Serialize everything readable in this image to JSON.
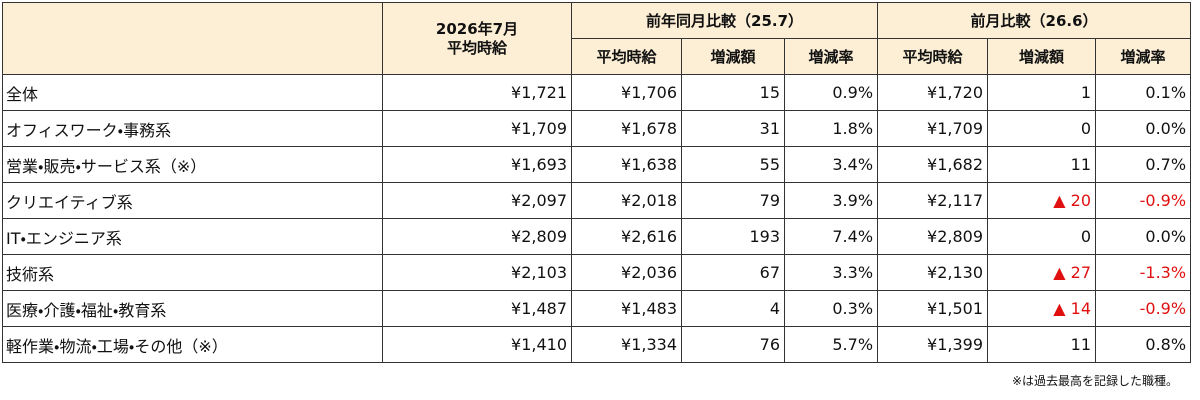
{
  "header": {
    "current": [
      "2026年7月",
      "平均時給"
    ],
    "groups": [
      "前年同月比較（25.7）",
      "前月比較（26.6）"
    ],
    "columns": [
      "平均時給",
      "増減額",
      "増減率",
      "平均時給",
      "増減額",
      "増減率"
    ]
  },
  "table": {
    "rows": [
      [
        "全体",
        "¥1,721",
        "¥1,706",
        "15",
        "0.9%",
        "¥1,720",
        "1",
        "0.1%"
      ],
      [
        "オフィスワーク・事務系",
        "¥1,709",
        "¥1,678",
        "31",
        "1.8%",
        "¥1,709",
        "0",
        "0.0%"
      ],
      [
        "営業・販売・サービス系（※）",
        "¥1,693",
        "¥1,638",
        "55",
        "3.4%",
        "¥1,682",
        "11",
        "0.7%"
      ],
      [
        "クリエイティブ系",
        "¥2,097",
        "¥2,018",
        "79",
        "3.9%",
        "¥2,117",
        "▲ 20",
        "-0.9%"
      ],
      [
        "IT・エンジニア系",
        "¥2,809",
        "¥2,616",
        "193",
        "7.4%",
        "¥2,809",
        "0",
        "0.0%"
      ],
      [
        "技術系",
        "¥2,103",
        "¥2,036",
        "67",
        "3.3%",
        "¥2,130",
        "▲ 27",
        "-1.3%"
      ],
      [
        "医療・介護・福祉・教育系",
        "¥1,487",
        "¥1,483",
        "4",
        "0.3%",
        "¥1,501",
        "▲ 14",
        "-0.9%"
      ],
      [
        "軽作業・物流・工場・その他（※）",
        "¥1,410",
        "¥1,334",
        "76",
        "5.7%",
        "¥1,399",
        "11",
        "0.8%"
      ]
    ]
  },
  "footnote": "※は過去最高を記録した職種。"
}
